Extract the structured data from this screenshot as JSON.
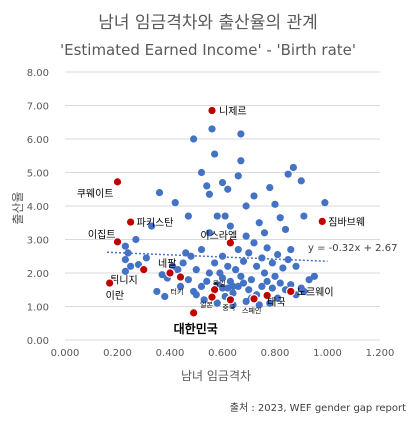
{
  "chart_data": {
    "type": "scatter",
    "title": "남녀 임금격차와 출산율의 관계",
    "subtitle": "'Estimated Earned Income' - 'Birth rate'",
    "xlabel": "남녀 임금격차",
    "ylabel": "출산율",
    "xlim": [
      0,
      1.2
    ],
    "ylim": [
      0,
      8
    ],
    "x_ticks": [
      "0.000",
      "0.200",
      "0.400",
      "0.600",
      "0.800",
      "1.000",
      "1.200"
    ],
    "y_ticks": [
      "0.00",
      "1.00",
      "2.00",
      "3.00",
      "4.00",
      "5.00",
      "6.00",
      "7.00",
      "8.00"
    ],
    "grid": "horizontal",
    "trendline": {
      "label": "y = -0.32x + 2.67",
      "slope": -0.32,
      "intercept": 2.67
    },
    "source": "출처 : 2023, WEF gender gap report",
    "colors": {
      "point": "#4472C4",
      "highlight": "#C00000",
      "grid": "#D9D9D9",
      "trend": "#4472C4"
    },
    "highlighted": [
      {
        "label": "니제르",
        "x": 0.56,
        "y": 6.85
      },
      {
        "label": "쿠웨이트",
        "x": 0.2,
        "y": 4.72
      },
      {
        "label": "파키스탄",
        "x": 0.25,
        "y": 3.52
      },
      {
        "label": "이집트",
        "x": 0.2,
        "y": 2.93
      },
      {
        "label": "이스라엘",
        "x": 0.63,
        "y": 2.9
      },
      {
        "label": "짐바브웨",
        "x": 0.98,
        "y": 3.54
      },
      {
        "label": "네팔",
        "x": 0.4,
        "y": 2.0
      },
      {
        "label": "튀니지",
        "x": 0.3,
        "y": 2.1
      },
      {
        "label": "이란",
        "x": 0.17,
        "y": 1.7
      },
      {
        "label": "터키",
        "x": 0.44,
        "y": 1.88
      },
      {
        "label": "독일",
        "x": 0.57,
        "y": 1.5
      },
      {
        "label": "일본",
        "x": 0.56,
        "y": 1.28
      },
      {
        "label": "중국",
        "x": 0.63,
        "y": 1.2
      },
      {
        "label": "스페인",
        "x": 0.72,
        "y": 1.23
      },
      {
        "label": "태국",
        "x": 0.77,
        "y": 1.33
      },
      {
        "label": "노르웨이",
        "x": 0.86,
        "y": 1.45
      },
      {
        "label": "대한민국",
        "x": 0.49,
        "y": 0.81
      }
    ],
    "points": [
      [
        0.23,
        2.8
      ],
      [
        0.24,
        2.6
      ],
      [
        0.27,
        3.0
      ],
      [
        0.33,
        3.4
      ],
      [
        0.23,
        2.4
      ],
      [
        0.25,
        2.2
      ],
      [
        0.23,
        2.05
      ],
      [
        0.28,
        2.25
      ],
      [
        0.31,
        2.45
      ],
      [
        0.36,
        4.4
      ],
      [
        0.42,
        4.1
      ],
      [
        0.47,
        3.7
      ],
      [
        0.49,
        6.0
      ],
      [
        0.52,
        5.0
      ],
      [
        0.54,
        4.6
      ],
      [
        0.55,
        4.35
      ],
      [
        0.56,
        6.3
      ],
      [
        0.57,
        5.55
      ],
      [
        0.6,
        4.7
      ],
      [
        0.61,
        3.7
      ],
      [
        0.62,
        4.5
      ],
      [
        0.66,
        4.9
      ],
      [
        0.67,
        6.15
      ],
      [
        0.67,
        5.35
      ],
      [
        0.69,
        4.0
      ],
      [
        0.72,
        4.3
      ],
      [
        0.74,
        3.5
      ],
      [
        0.76,
        3.2
      ],
      [
        0.78,
        4.55
      ],
      [
        0.8,
        4.05
      ],
      [
        0.82,
        3.65
      ],
      [
        0.84,
        3.3
      ],
      [
        0.85,
        4.95
      ],
      [
        0.87,
        5.15
      ],
      [
        0.9,
        4.75
      ],
      [
        0.91,
        3.7
      ],
      [
        0.99,
        4.1
      ],
      [
        0.55,
        3.2
      ],
      [
        0.52,
        2.7
      ],
      [
        0.48,
        2.5
      ],
      [
        0.45,
        2.3
      ],
      [
        0.43,
        2.1
      ],
      [
        0.41,
        2.2
      ],
      [
        0.39,
        1.85
      ],
      [
        0.37,
        1.95
      ],
      [
        0.47,
        1.8
      ],
      [
        0.52,
        1.6
      ],
      [
        0.54,
        1.75
      ],
      [
        0.58,
        1.65
      ],
      [
        0.6,
        1.85
      ],
      [
        0.62,
        1.55
      ],
      [
        0.64,
        1.4
      ],
      [
        0.66,
        1.6
      ],
      [
        0.68,
        1.7
      ],
      [
        0.7,
        1.5
      ],
      [
        0.71,
        1.8
      ],
      [
        0.73,
        1.35
      ],
      [
        0.75,
        1.6
      ],
      [
        0.77,
        1.75
      ],
      [
        0.79,
        1.55
      ],
      [
        0.8,
        1.9
      ],
      [
        0.82,
        1.7
      ],
      [
        0.84,
        1.5
      ],
      [
        0.86,
        1.65
      ],
      [
        0.88,
        1.35
      ],
      [
        0.9,
        1.55
      ],
      [
        0.93,
        1.8
      ],
      [
        0.65,
        2.1
      ],
      [
        0.68,
        2.35
      ],
      [
        0.7,
        2.6
      ],
      [
        0.73,
        2.2
      ],
      [
        0.75,
        2.45
      ],
      [
        0.77,
        2.75
      ],
      [
        0.79,
        2.3
      ],
      [
        0.81,
        2.55
      ],
      [
        0.83,
        2.15
      ],
      [
        0.85,
        2.4
      ],
      [
        0.6,
        2.5
      ],
      [
        0.62,
        2.2
      ],
      [
        0.57,
        2.3
      ],
      [
        0.55,
        2.0
      ],
      [
        0.5,
        2.1
      ],
      [
        0.35,
        1.45
      ],
      [
        0.38,
        1.3
      ],
      [
        0.5,
        1.35
      ],
      [
        0.53,
        1.2
      ],
      [
        0.58,
        1.1
      ],
      [
        0.61,
        1.3
      ],
      [
        0.64,
        1.05
      ],
      [
        0.69,
        1.15
      ],
      [
        0.74,
        1.05
      ],
      [
        0.78,
        1.1
      ],
      [
        0.81,
        1.25
      ],
      [
        0.67,
        1.9
      ],
      [
        0.63,
        1.75
      ],
      [
        0.59,
        2.0
      ],
      [
        0.76,
        2.0
      ],
      [
        0.72,
        2.9
      ],
      [
        0.69,
        3.1
      ],
      [
        0.66,
        2.7
      ],
      [
        0.46,
        2.6
      ],
      [
        0.49,
        1.45
      ],
      [
        0.44,
        1.6
      ],
      [
        0.63,
        3.4
      ],
      [
        0.58,
        3.7
      ],
      [
        0.86,
        2.7
      ],
      [
        0.88,
        2.2
      ],
      [
        0.91,
        1.45
      ],
      [
        0.95,
        1.9
      ],
      [
        0.71,
        1.25
      ],
      [
        0.64,
        1.6
      ],
      [
        0.6,
        1.55
      ]
    ]
  }
}
